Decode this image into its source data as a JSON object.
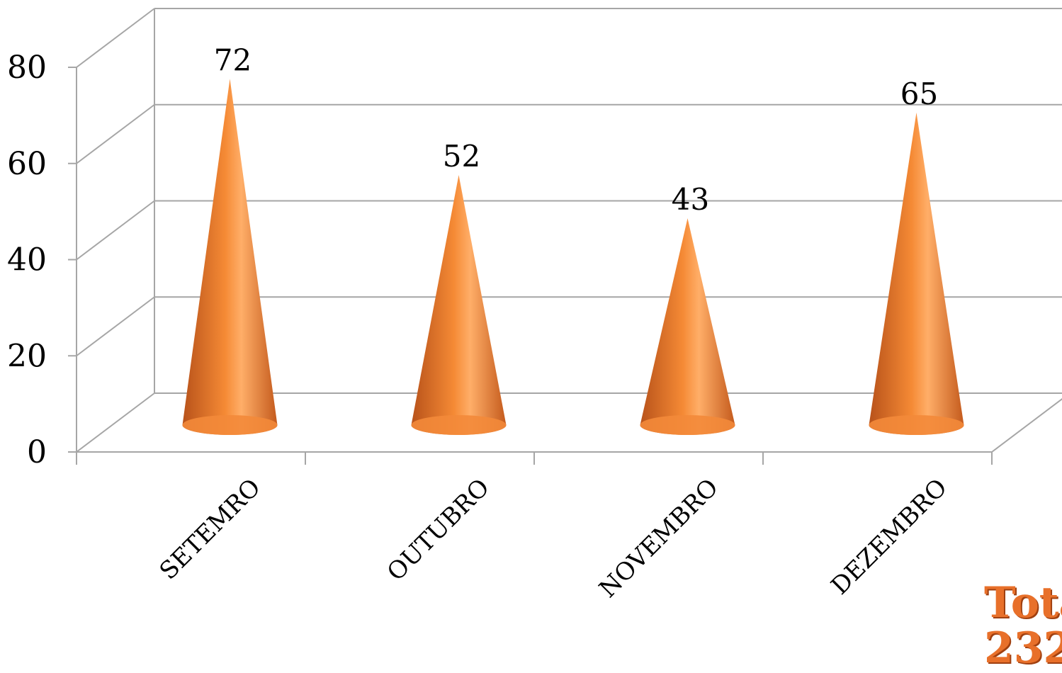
{
  "chart_data": {
    "type": "bar",
    "bar_shape": "cone",
    "categories": [
      "SETEMRO",
      "OUTUBRO",
      "NOVEMBRO",
      "DEZEMBRO"
    ],
    "values": [
      72,
      52,
      43,
      65
    ],
    "data_labels": [
      "72",
      "52",
      "43",
      "65"
    ],
    "yticks": [
      "0",
      "20",
      "40",
      "60",
      "80"
    ],
    "ylim": [
      0,
      80
    ],
    "grid": true,
    "projection": "3d",
    "colors": {
      "bar": "#f07f2c",
      "bar_light": "#ffb068",
      "bar_dark": "#b8521a",
      "grid": "#a6a6a6"
    }
  },
  "caption": {
    "line1": "Tota",
    "line2": "232"
  }
}
